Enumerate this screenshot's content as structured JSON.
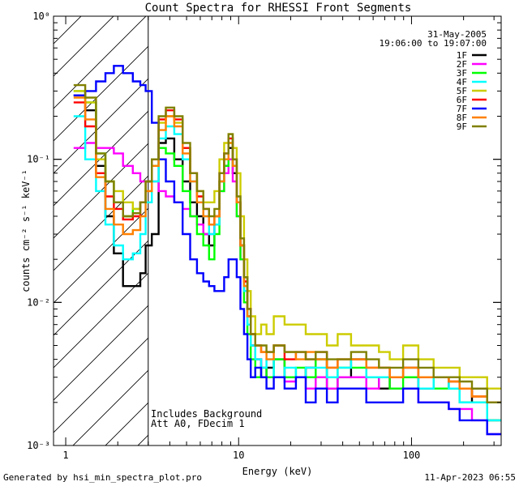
{
  "chart_data": {
    "type": "line",
    "title": "Count Spectra for RHESSI Front Segments",
    "xlabel": "Energy (keV)",
    "ylabel": "counts cm⁻² s⁻¹ keV⁻¹",
    "xscale": "log",
    "yscale": "log",
    "xlim": [
      0.85,
      330
    ],
    "ylim": [
      0.001,
      1
    ],
    "x_ticks": [
      {
        "value": 1,
        "label": "1"
      },
      {
        "value": 10,
        "label": "10"
      },
      {
        "value": 100,
        "label": "100"
      }
    ],
    "y_ticks": [
      {
        "value": 1,
        "label": "10⁰"
      },
      {
        "value": 0.1,
        "label": "10⁻¹"
      },
      {
        "value": 0.01,
        "label": "10⁻²"
      },
      {
        "value": 0.001,
        "label": "10⁻³"
      }
    ],
    "date": "31-May-2005",
    "time_range": "19:06:00 to 19:07:00",
    "hatched_region": {
      "xmin": 0.85,
      "xmax": 3.0
    },
    "cutoff_line_x": 3.0,
    "annotations": [
      "Includes Background",
      "Att A0, FDecim 1"
    ],
    "series_energies": [
      1.2,
      1.4,
      1.6,
      1.8,
      2.0,
      2.3,
      2.6,
      2.8,
      3.0,
      3.3,
      3.6,
      4.0,
      4.5,
      5.0,
      5.5,
      6.0,
      6.5,
      7.0,
      7.5,
      8.0,
      8.5,
      9.0,
      9.5,
      10.0,
      10.5,
      11.0,
      11.5,
      12.0,
      13,
      14,
      15,
      17,
      20,
      23,
      26,
      30,
      35,
      40,
      50,
      60,
      70,
      80,
      100,
      120,
      150,
      180,
      200,
      250,
      300
    ],
    "series": [
      {
        "name": "1F",
        "color": "#000000",
        "values": [
          0.28,
          0.22,
          0.09,
          0.04,
          0.022,
          0.013,
          0.013,
          0.016,
          0.025,
          0.03,
          0.13,
          0.14,
          0.1,
          0.07,
          0.05,
          0.04,
          0.03,
          0.025,
          0.035,
          0.07,
          0.09,
          0.12,
          0.08,
          0.05,
          0.025,
          0.015,
          0.008,
          0.005,
          0.004,
          0.003,
          0.0035,
          0.004,
          0.003,
          0.003,
          0.0035,
          0.004,
          0.0025,
          0.003,
          0.004,
          0.003,
          0.0025,
          0.003,
          0.003,
          0.0025,
          0.003,
          0.0025,
          0.002,
          0.0025,
          0.0015
        ]
      },
      {
        "name": "2F",
        "color": "#ff00ff",
        "values": [
          0.12,
          0.13,
          0.12,
          0.12,
          0.11,
          0.09,
          0.08,
          0.07,
          0.07,
          0.07,
          0.06,
          0.055,
          0.05,
          0.045,
          0.04,
          0.035,
          0.03,
          0.03,
          0.035,
          0.06,
          0.08,
          0.1,
          0.07,
          0.04,
          0.02,
          0.012,
          0.007,
          0.005,
          0.004,
          0.0035,
          0.003,
          0.003,
          0.0028,
          0.003,
          0.0025,
          0.003,
          0.0025,
          0.003,
          0.003,
          0.0025,
          0.003,
          0.0025,
          0.0025,
          0.002,
          0.002,
          0.0018,
          0.0018,
          0.0015,
          0.0012
        ]
      },
      {
        "name": "3F",
        "color": "#00ff00",
        "values": [
          0.3,
          0.25,
          0.11,
          0.07,
          0.05,
          0.04,
          0.045,
          0.05,
          0.07,
          0.09,
          0.12,
          0.11,
          0.09,
          0.06,
          0.04,
          0.03,
          0.025,
          0.02,
          0.03,
          0.06,
          0.09,
          0.13,
          0.09,
          0.04,
          0.02,
          0.01,
          0.006,
          0.004,
          0.003,
          0.0035,
          0.003,
          0.004,
          0.003,
          0.0035,
          0.003,
          0.004,
          0.003,
          0.0035,
          0.0035,
          0.003,
          0.003,
          0.0025,
          0.003,
          0.003,
          0.0025,
          0.0025,
          0.002,
          0.002,
          0.0015
        ]
      },
      {
        "name": "4F",
        "color": "#00ffff",
        "values": [
          0.2,
          0.1,
          0.06,
          0.035,
          0.025,
          0.02,
          0.022,
          0.03,
          0.05,
          0.07,
          0.14,
          0.17,
          0.15,
          0.1,
          0.07,
          0.05,
          0.04,
          0.03,
          0.035,
          0.07,
          0.1,
          0.14,
          0.1,
          0.05,
          0.025,
          0.012,
          0.007,
          0.005,
          0.004,
          0.0035,
          0.004,
          0.003,
          0.0035,
          0.003,
          0.0035,
          0.0035,
          0.003,
          0.0035,
          0.004,
          0.003,
          0.003,
          0.003,
          0.0035,
          0.0025,
          0.003,
          0.0025,
          0.002,
          0.002,
          0.0015
        ]
      },
      {
        "name": "5F",
        "color": "#cccc00",
        "values": [
          0.3,
          0.25,
          0.1,
          0.07,
          0.06,
          0.05,
          0.045,
          0.05,
          0.06,
          0.1,
          0.18,
          0.2,
          0.18,
          0.12,
          0.08,
          0.06,
          0.05,
          0.05,
          0.06,
          0.1,
          0.13,
          0.15,
          0.12,
          0.08,
          0.04,
          0.02,
          0.012,
          0.008,
          0.006,
          0.007,
          0.006,
          0.008,
          0.007,
          0.007,
          0.006,
          0.006,
          0.005,
          0.006,
          0.005,
          0.005,
          0.0045,
          0.004,
          0.005,
          0.004,
          0.0035,
          0.0035,
          0.003,
          0.003,
          0.0025
        ]
      },
      {
        "name": "6F",
        "color": "#ff0000",
        "values": [
          0.25,
          0.17,
          0.08,
          0.055,
          0.045,
          0.038,
          0.04,
          0.05,
          0.07,
          0.1,
          0.19,
          0.22,
          0.19,
          0.12,
          0.08,
          0.055,
          0.045,
          0.035,
          0.04,
          0.08,
          0.11,
          0.14,
          0.1,
          0.05,
          0.025,
          0.014,
          0.009,
          0.006,
          0.005,
          0.0045,
          0.0045,
          0.005,
          0.004,
          0.0045,
          0.004,
          0.0045,
          0.0035,
          0.004,
          0.004,
          0.0035,
          0.0035,
          0.003,
          0.0035,
          0.003,
          0.003,
          0.0028,
          0.0025,
          0.0022,
          0.002
        ]
      },
      {
        "name": "7F",
        "color": "#0000ff",
        "values": [
          0.28,
          0.3,
          0.35,
          0.4,
          0.45,
          0.4,
          0.35,
          0.33,
          0.3,
          0.18,
          0.1,
          0.07,
          0.05,
          0.03,
          0.02,
          0.016,
          0.014,
          0.013,
          0.012,
          0.012,
          0.015,
          0.02,
          0.02,
          0.015,
          0.009,
          0.006,
          0.004,
          0.003,
          0.0035,
          0.003,
          0.0025,
          0.003,
          0.0025,
          0.003,
          0.002,
          0.0025,
          0.002,
          0.0025,
          0.0025,
          0.002,
          0.002,
          0.002,
          0.0025,
          0.002,
          0.002,
          0.0018,
          0.0015,
          0.0015,
          0.0012
        ]
      },
      {
        "name": "8F",
        "color": "#ff8000",
        "values": [
          0.27,
          0.19,
          0.075,
          0.045,
          0.035,
          0.03,
          0.032,
          0.04,
          0.06,
          0.09,
          0.16,
          0.2,
          0.17,
          0.11,
          0.07,
          0.05,
          0.04,
          0.035,
          0.04,
          0.07,
          0.1,
          0.13,
          0.09,
          0.05,
          0.025,
          0.013,
          0.008,
          0.006,
          0.005,
          0.0045,
          0.004,
          0.005,
          0.0045,
          0.004,
          0.0045,
          0.004,
          0.0035,
          0.004,
          0.004,
          0.0035,
          0.0035,
          0.003,
          0.0035,
          0.003,
          0.003,
          0.0028,
          0.0025,
          0.0022,
          0.002
        ]
      },
      {
        "name": "9F",
        "color": "#808000",
        "values": [
          0.33,
          0.27,
          0.11,
          0.07,
          0.05,
          0.04,
          0.042,
          0.05,
          0.07,
          0.1,
          0.2,
          0.23,
          0.2,
          0.13,
          0.08,
          0.06,
          0.045,
          0.04,
          0.045,
          0.08,
          0.11,
          0.15,
          0.1,
          0.055,
          0.028,
          0.015,
          0.009,
          0.006,
          0.005,
          0.005,
          0.0045,
          0.005,
          0.0045,
          0.0045,
          0.004,
          0.0045,
          0.004,
          0.004,
          0.0045,
          0.004,
          0.0035,
          0.0035,
          0.004,
          0.0035,
          0.003,
          0.003,
          0.0028,
          0.0025,
          0.002
        ]
      }
    ]
  },
  "footer": {
    "left": "Generated by hsi_min_spectra_plot.pro",
    "right": "11-Apr-2023 06:55"
  }
}
